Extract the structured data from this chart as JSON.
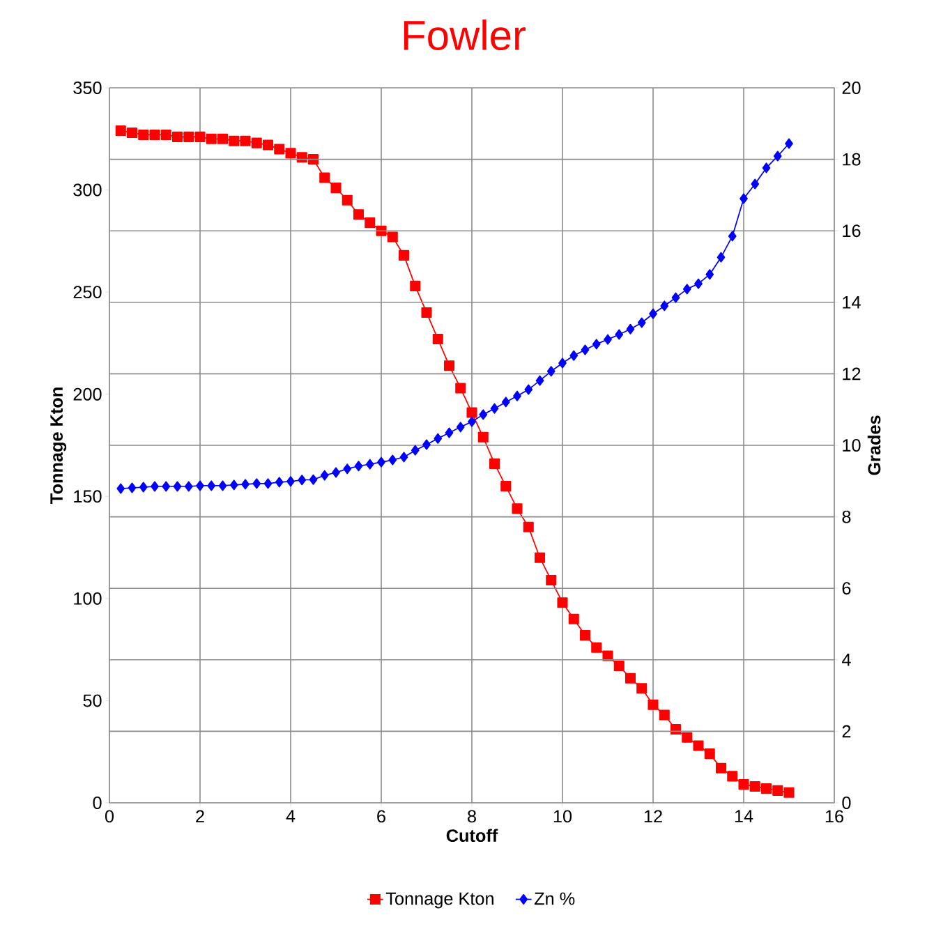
{
  "chart_data": {
    "type": "line",
    "title": "Fowler",
    "xlabel": "Cutoff",
    "ylabel": "Tonnage Kton",
    "y2label": "Grades",
    "x": [
      0.25,
      0.5,
      0.75,
      1,
      1.25,
      1.5,
      1.75,
      2,
      2.25,
      2.5,
      2.75,
      3,
      3.25,
      3.5,
      3.75,
      4,
      4.25,
      4.5,
      4.75,
      5,
      5.25,
      5.5,
      5.75,
      6,
      6.25,
      6.5,
      6.75,
      7,
      7.25,
      7.5,
      7.75,
      8,
      8.25,
      8.5,
      8.75,
      9,
      9.25,
      9.5,
      9.75,
      10,
      10.25,
      10.5,
      10.75,
      11,
      11.25,
      11.5,
      11.75,
      12,
      12.25,
      12.5,
      12.75,
      13,
      13.25,
      13.5,
      13.75,
      14,
      14.25,
      14.5,
      14.75,
      15
    ],
    "series": [
      {
        "name": "Tonnage Kton",
        "color": "#ff0000",
        "marker": "square",
        "values": [
          329,
          328,
          327,
          327,
          327,
          326,
          326,
          326,
          325,
          325,
          324,
          324,
          323,
          322,
          320,
          318,
          316,
          315,
          306,
          301,
          295,
          288,
          284,
          280,
          277,
          268,
          253,
          240,
          227,
          214,
          203,
          191,
          179,
          166,
          155,
          144,
          135,
          120,
          109,
          98,
          90,
          82,
          76,
          72,
          67,
          61,
          56,
          48,
          43,
          36,
          32,
          28,
          24,
          17,
          13,
          9,
          8,
          7,
          6,
          5
        ]
      },
      {
        "name": "Zn %",
        "color": "#0000ff",
        "marker": "diamond",
        "axis": "y2",
        "values": [
          8.79,
          8.81,
          8.83,
          8.85,
          8.85,
          8.85,
          8.85,
          8.87,
          8.87,
          8.87,
          8.89,
          8.91,
          8.93,
          8.93,
          8.97,
          8.99,
          9.03,
          9.04,
          9.16,
          9.24,
          9.34,
          9.42,
          9.47,
          9.53,
          9.59,
          9.67,
          9.86,
          10.02,
          10.19,
          10.35,
          10.51,
          10.66,
          10.86,
          11.03,
          11.21,
          11.38,
          11.56,
          11.81,
          12.07,
          12.3,
          12.51,
          12.67,
          12.83,
          12.96,
          13.1,
          13.25,
          13.43,
          13.68,
          13.9,
          14.13,
          14.37,
          14.52,
          14.78,
          15.26,
          15.85,
          16.9,
          17.31,
          17.76,
          18.09,
          18.44
        ]
      }
    ],
    "xlim": [
      0,
      16
    ],
    "xticks": [
      0,
      2,
      4,
      6,
      8,
      10,
      12,
      14,
      16
    ],
    "ylim": [
      0,
      350
    ],
    "yticks": [
      0,
      50,
      100,
      150,
      200,
      250,
      300,
      350
    ],
    "y2lim": [
      0,
      20
    ],
    "y2ticks": [
      0,
      2,
      4,
      6,
      8,
      10,
      12,
      14,
      16,
      18,
      20
    ],
    "grid": true,
    "legend": "bottom",
    "line_style": "solid"
  }
}
